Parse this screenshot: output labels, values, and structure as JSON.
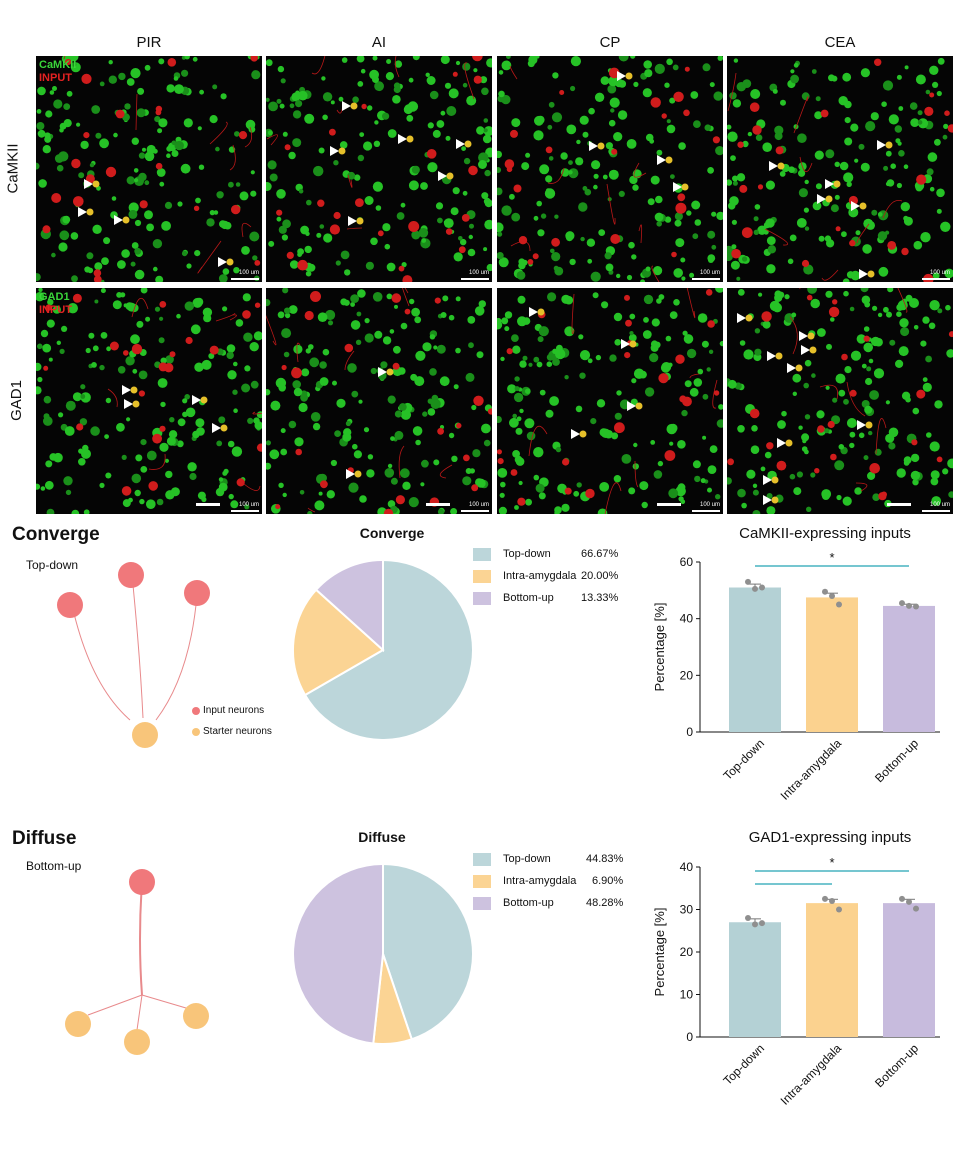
{
  "figure": {
    "columns": [
      "PIR",
      "AI",
      "CP",
      "CEA"
    ],
    "rows": [
      {
        "label": "CaMKII",
        "marker": "CaMKII",
        "tracer": "INPUT"
      },
      {
        "label": "GAD1",
        "marker": "GAD1",
        "tracer": "INPUT"
      }
    ],
    "scale_label": "100 um",
    "colors": {
      "marker": "#2fd12f",
      "tracer": "#e02020",
      "arrow": "#ffffff"
    }
  },
  "converge": {
    "title": "Converge",
    "subtitle": "Top-down",
    "legend": {
      "input": "Input neurons",
      "starter": "Starter neurons"
    },
    "colors": {
      "input": "#f0787b",
      "starter": "#f8c57a",
      "line": "#e88a8c"
    }
  },
  "diffuse": {
    "title": "Diffuse",
    "subtitle": "Bottom-up",
    "colors": {
      "input": "#f0787b",
      "starter": "#f8c57a",
      "line": "#e88a8c"
    }
  },
  "chart_data": [
    {
      "type": "pie",
      "title": "Converge",
      "categories": [
        "Top-down",
        "Intra-amygdala",
        "Bottom-up"
      ],
      "values": [
        66.67,
        20.0,
        13.33
      ],
      "labels": [
        "66.67%",
        "20.00%",
        "13.33%"
      ],
      "colors": [
        "#bcd6da",
        "#fbd494",
        "#cdc2df"
      ]
    },
    {
      "type": "pie",
      "title": "Diffuse",
      "categories": [
        "Top-down",
        "Intra-amygdala",
        "Bottom-up"
      ],
      "values": [
        44.83,
        6.9,
        48.28
      ],
      "labels": [
        "44.83%",
        "6.90%",
        "48.28%"
      ],
      "colors": [
        "#bcd6da",
        "#fbd494",
        "#cdc2df"
      ]
    },
    {
      "type": "bar",
      "title": "CaMKII-expressing inputs",
      "ylabel": "Percentage [%]",
      "xlabel": "",
      "categories": [
        "Top-down",
        "Intra-amygdala",
        "Bottom-up"
      ],
      "values": [
        51,
        47.5,
        44.5
      ],
      "errors": [
        1.2,
        1.5,
        0.6
      ],
      "points": [
        [
          53,
          50.5,
          51
        ],
        [
          49.5,
          48,
          45
        ],
        [
          45.5,
          44.5,
          44.3
        ]
      ],
      "ylim": [
        0,
        60
      ],
      "yticks": [
        0,
        20,
        40,
        60
      ],
      "colors": [
        "#b4d1d5",
        "#fbd28f",
        "#c7bbdd"
      ],
      "significance": [
        {
          "from": 0,
          "to": 2,
          "label": "*"
        }
      ]
    },
    {
      "type": "bar",
      "title": "GAD1-expressing inputs",
      "ylabel": "Percentage [%]",
      "xlabel": "",
      "categories": [
        "Top-down",
        "Intra-amygdala",
        "Bottom-up"
      ],
      "values": [
        27,
        31.5,
        31.5
      ],
      "errors": [
        0.8,
        0.9,
        0.9
      ],
      "points": [
        [
          28,
          26.5,
          26.8
        ],
        [
          32.5,
          32,
          30
        ],
        [
          32.5,
          31.8,
          30.2
        ]
      ],
      "ylim": [
        0,
        40
      ],
      "yticks": [
        0,
        10,
        20,
        30,
        40
      ],
      "colors": [
        "#b4d1d5",
        "#fbd28f",
        "#c7bbdd"
      ],
      "significance": [
        {
          "from": 0,
          "to": 2,
          "label": "*"
        },
        {
          "from": 0,
          "to": 1,
          "label": ""
        }
      ]
    }
  ]
}
